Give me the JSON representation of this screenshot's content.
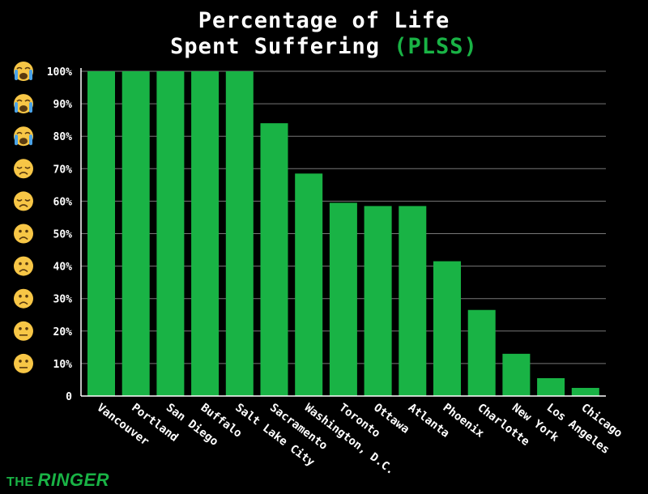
{
  "chart_data": {
    "type": "bar",
    "title_line1": "Percentage of Life",
    "title_line2_prefix": "Spent Suffering ",
    "title_line2_highlight": "(PLSS)",
    "categories": [
      "Vancouver",
      "Portland",
      "San Diego",
      "Buffalo",
      "Salt Lake City",
      "Sacramento",
      "Washington, D.C.",
      "Toronto",
      "Ottawa",
      "Atlanta",
      "Phoenix",
      "Charlotte",
      "New York",
      "Los Angeles",
      "Chicago"
    ],
    "values": [
      100,
      100,
      100,
      100,
      100,
      84,
      68.5,
      59.5,
      58.5,
      58.5,
      41.5,
      26.5,
      13,
      5.5,
      2.5
    ],
    "yticks": [
      "0",
      "10%",
      "20%",
      "30%",
      "40%",
      "50%",
      "60%",
      "70%",
      "80%",
      "90%",
      "100%"
    ],
    "ylim": [
      0,
      100
    ],
    "grid": true,
    "bar_color": "#19b345",
    "background": "#000000",
    "tick_icons": [
      "",
      "neutral-face-icon",
      "neutral-face-icon",
      "frowning-face-icon",
      "frowning-face-icon",
      "frowning-face-icon",
      "disappointed-face-icon",
      "disappointed-face-icon",
      "crying-face-icon",
      "crying-face-icon",
      "crying-face-icon"
    ]
  },
  "brand": {
    "the": "THE",
    "ringer": "RINGER"
  }
}
